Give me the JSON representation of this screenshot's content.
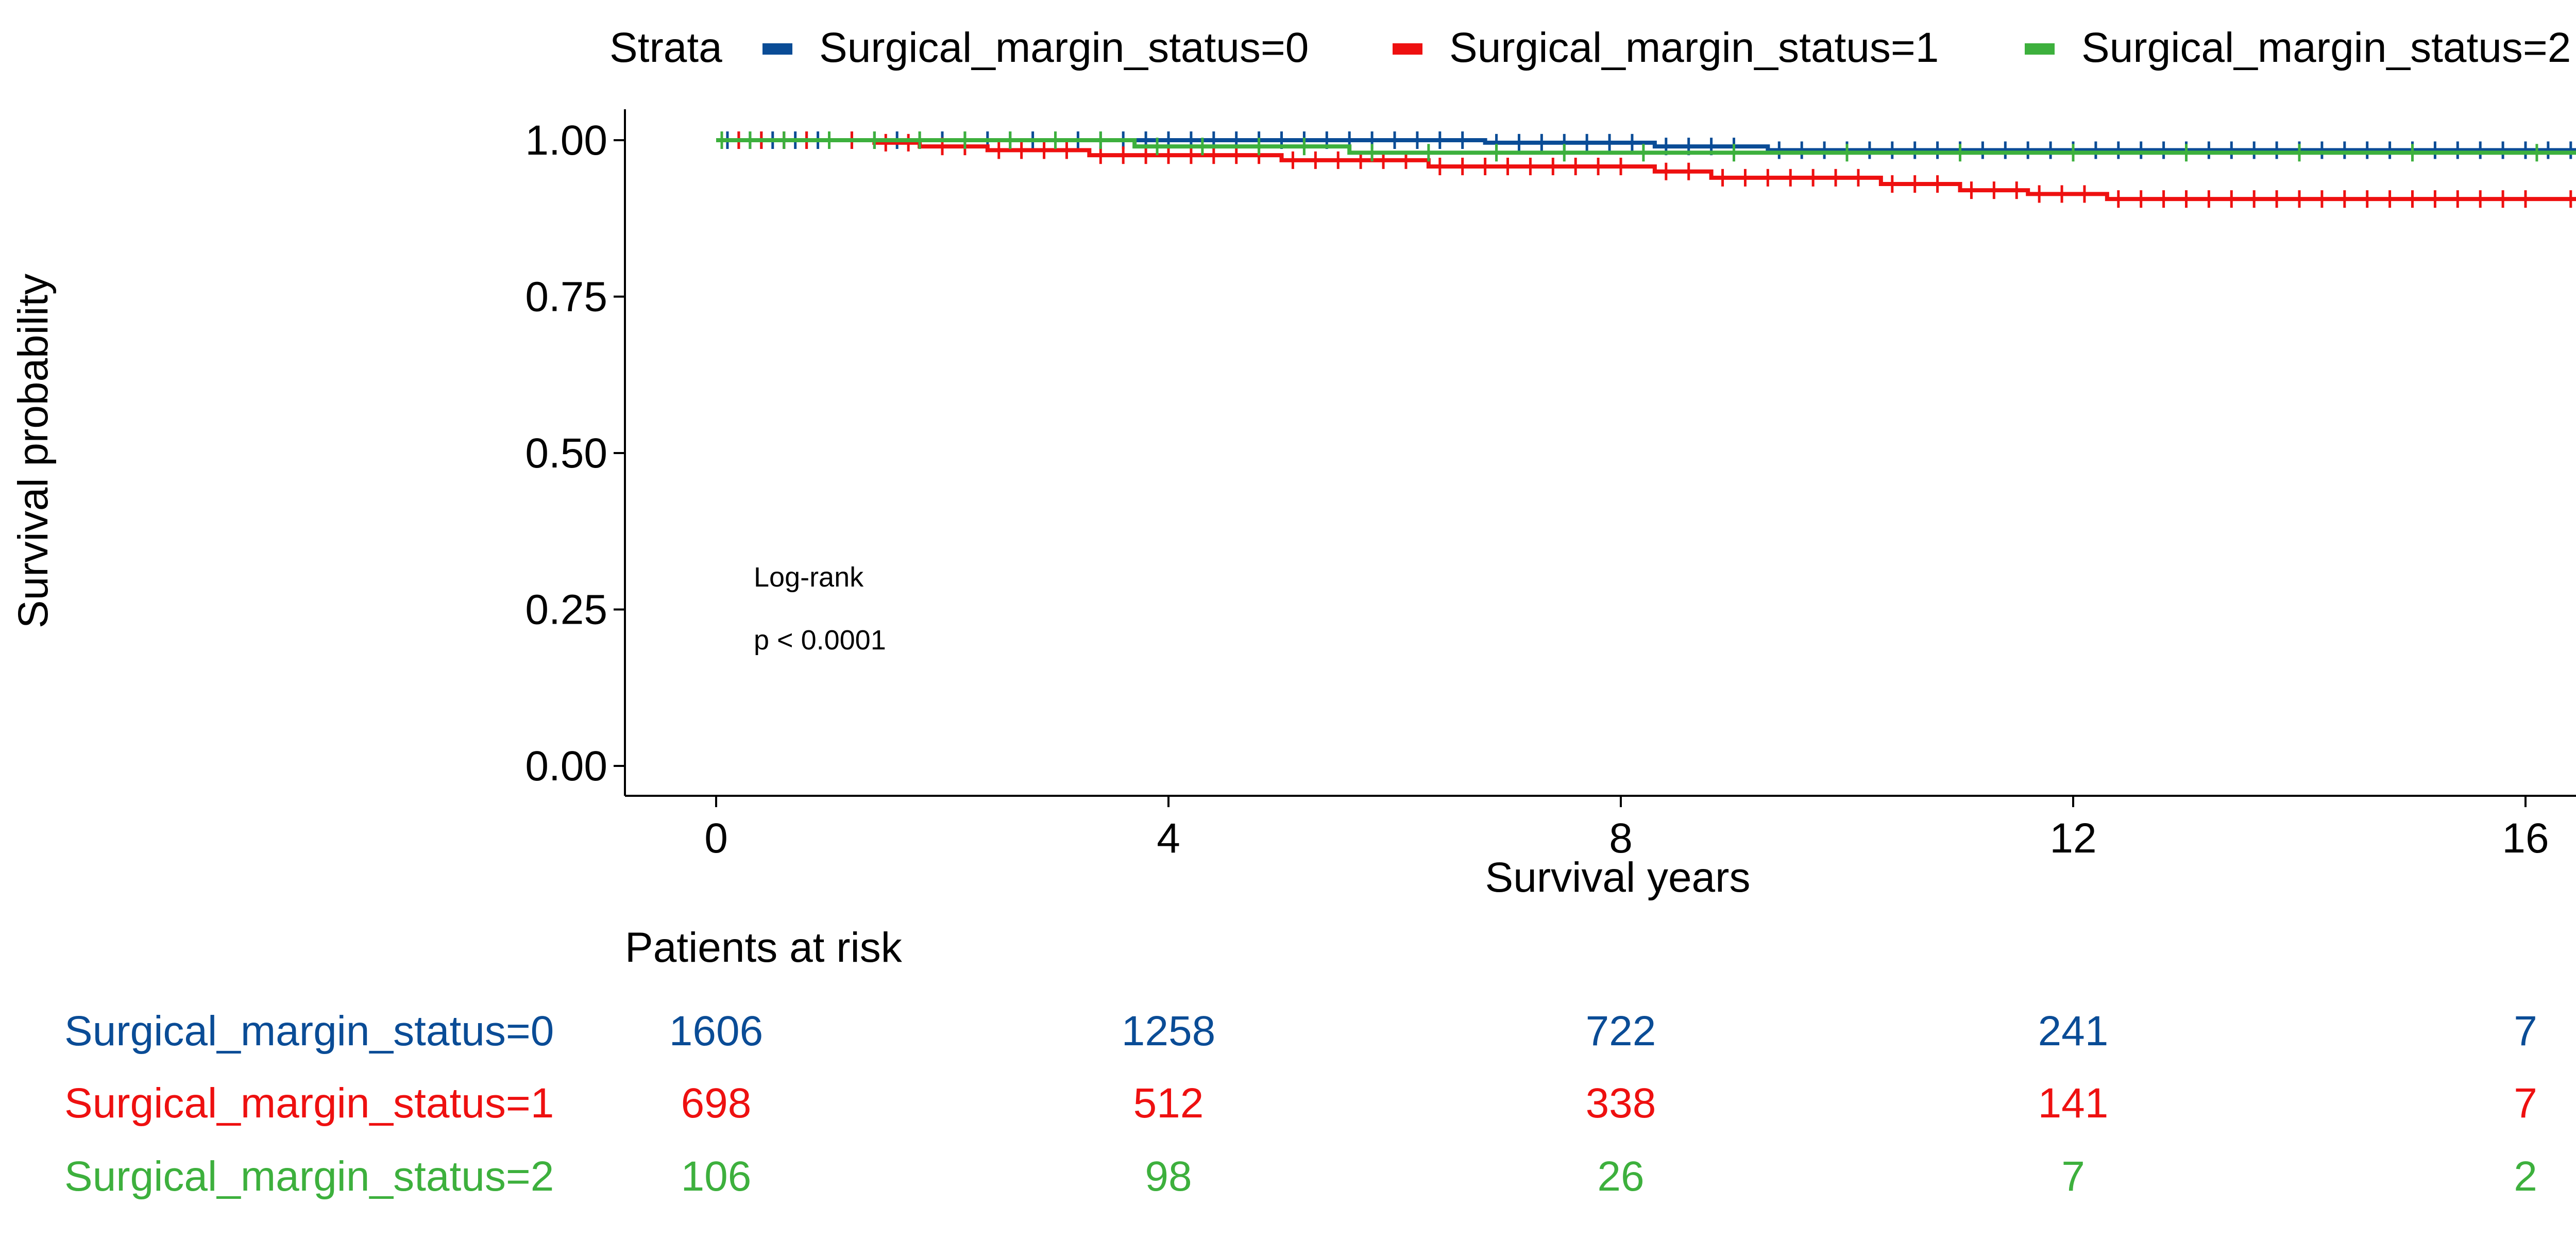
{
  "legend": {
    "title": "Strata",
    "entries": [
      {
        "label": "Surgical_margin_status=0",
        "color": "#0A4C96"
      },
      {
        "label": "Surgical_margin_status=1",
        "color": "#EE1010"
      },
      {
        "label": "Surgical_margin_status=2",
        "color": "#3DB03D"
      }
    ],
    "position": "top"
  },
  "annotation": {
    "line1": "Log-rank",
    "line2": "p < 0.0001"
  },
  "risk_table": {
    "title": "Patients at risk",
    "times": [
      0,
      4,
      8,
      12,
      16
    ],
    "rows": [
      {
        "label": "Surgical_margin_status=0",
        "color": "#0A4C96",
        "counts": [
          "1606",
          "1258",
          "722",
          "241",
          "7"
        ]
      },
      {
        "label": "Surgical_margin_status=1",
        "color": "#EE1010",
        "counts": [
          "698",
          "512",
          "338",
          "141",
          "7"
        ]
      },
      {
        "label": "Surgical_margin_status=2",
        "color": "#3DB03D",
        "counts": [
          "106",
          "98",
          "26",
          "7",
          "2"
        ]
      }
    ]
  },
  "chart_data": {
    "type": "line",
    "subtype": "kaplan-meier step curve",
    "title": "",
    "xlabel": "Survival years",
    "ylabel": "Survival probability",
    "xlim": [
      0,
      16.8
    ],
    "ylim": [
      0,
      1
    ],
    "xticks": [
      0,
      4,
      8,
      12,
      16
    ],
    "yticks": [
      0,
      0.25,
      0.5,
      0.75,
      1
    ],
    "ytick_labels": [
      "0.00",
      "0.25",
      "0.50",
      "0.75",
      "1.00"
    ],
    "grid": false,
    "series": [
      {
        "name": "Surgical_margin_status=0",
        "color": "#0A4C96",
        "steps": [
          [
            0,
            1.0
          ],
          [
            6.8,
            0.996
          ],
          [
            8.3,
            0.99
          ],
          [
            9.3,
            0.984
          ],
          [
            16.8,
            0.984
          ]
        ],
        "censor_times": [
          0.1,
          0.2,
          0.3,
          0.4,
          0.5,
          0.6,
          0.7,
          0.8,
          0.9,
          1.0,
          1.2,
          1.4,
          1.6,
          1.8,
          2.0,
          2.2,
          2.4,
          2.6,
          2.8,
          3.0,
          3.2,
          3.4,
          3.6,
          3.8,
          4.0,
          4.2,
          4.4,
          4.6,
          4.8,
          5.0,
          5.2,
          5.4,
          5.6,
          5.8,
          6.0,
          6.2,
          6.4,
          6.6,
          6.9,
          7.1,
          7.3,
          7.5,
          7.7,
          7.9,
          8.1,
          8.4,
          8.6,
          8.8,
          9.0,
          9.4,
          9.6,
          9.8,
          10.0,
          10.2,
          10.4,
          10.6,
          10.8,
          11.0,
          11.2,
          11.4,
          11.6,
          11.8,
          12.0,
          12.2,
          12.4,
          12.6,
          12.8,
          13.0,
          13.2,
          13.4,
          13.6,
          13.8,
          14.0,
          14.2,
          14.4,
          14.6,
          14.8,
          15.0,
          15.2,
          15.4,
          15.6,
          15.8,
          16.0,
          16.2,
          16.4
        ]
      },
      {
        "name": "Surgical_margin_status=1",
        "color": "#EE1010",
        "steps": [
          [
            0,
            1.0
          ],
          [
            1.4,
            0.996
          ],
          [
            1.8,
            0.99
          ],
          [
            2.4,
            0.984
          ],
          [
            3.3,
            0.976
          ],
          [
            5.0,
            0.968
          ],
          [
            6.3,
            0.958
          ],
          [
            8.3,
            0.95
          ],
          [
            8.8,
            0.94
          ],
          [
            10.3,
            0.93
          ],
          [
            11.0,
            0.92
          ],
          [
            11.6,
            0.914
          ],
          [
            12.3,
            0.906
          ],
          [
            16.8,
            0.906
          ]
        ],
        "censor_times": [
          0.2,
          0.4,
          0.6,
          0.8,
          1.0,
          1.2,
          1.5,
          1.7,
          2.0,
          2.2,
          2.5,
          2.7,
          2.9,
          3.1,
          3.4,
          3.6,
          3.8,
          4.0,
          4.2,
          4.4,
          4.6,
          4.8,
          5.1,
          5.3,
          5.5,
          5.7,
          5.9,
          6.1,
          6.4,
          6.6,
          6.8,
          7.0,
          7.2,
          7.4,
          7.6,
          7.8,
          8.0,
          8.4,
          8.6,
          8.9,
          9.1,
          9.3,
          9.5,
          9.7,
          9.9,
          10.1,
          10.4,
          10.6,
          10.8,
          11.1,
          11.3,
          11.5,
          11.7,
          11.9,
          12.1,
          12.4,
          12.6,
          12.8,
          13.0,
          13.2,
          13.4,
          13.6,
          13.8,
          14.0,
          14.2,
          14.4,
          14.6,
          14.8,
          15.0,
          15.2,
          15.4,
          15.6,
          15.8,
          16.0,
          16.4
        ]
      },
      {
        "name": "Surgical_margin_status=2",
        "color": "#3DB03D",
        "steps": [
          [
            0,
            1.0
          ],
          [
            3.7,
            0.99
          ],
          [
            5.6,
            0.98
          ],
          [
            16.8,
            0.98
          ]
        ],
        "censor_times": [
          0.05,
          0.3,
          0.6,
          1.0,
          1.4,
          1.8,
          2.2,
          2.6,
          3.0,
          3.4,
          3.9,
          4.3,
          4.8,
          5.2,
          5.8,
          6.3,
          6.9,
          7.5,
          8.2,
          9.0,
          10.0,
          11.0,
          12.0,
          13.0,
          14.0,
          15.0,
          16.1
        ]
      }
    ]
  }
}
